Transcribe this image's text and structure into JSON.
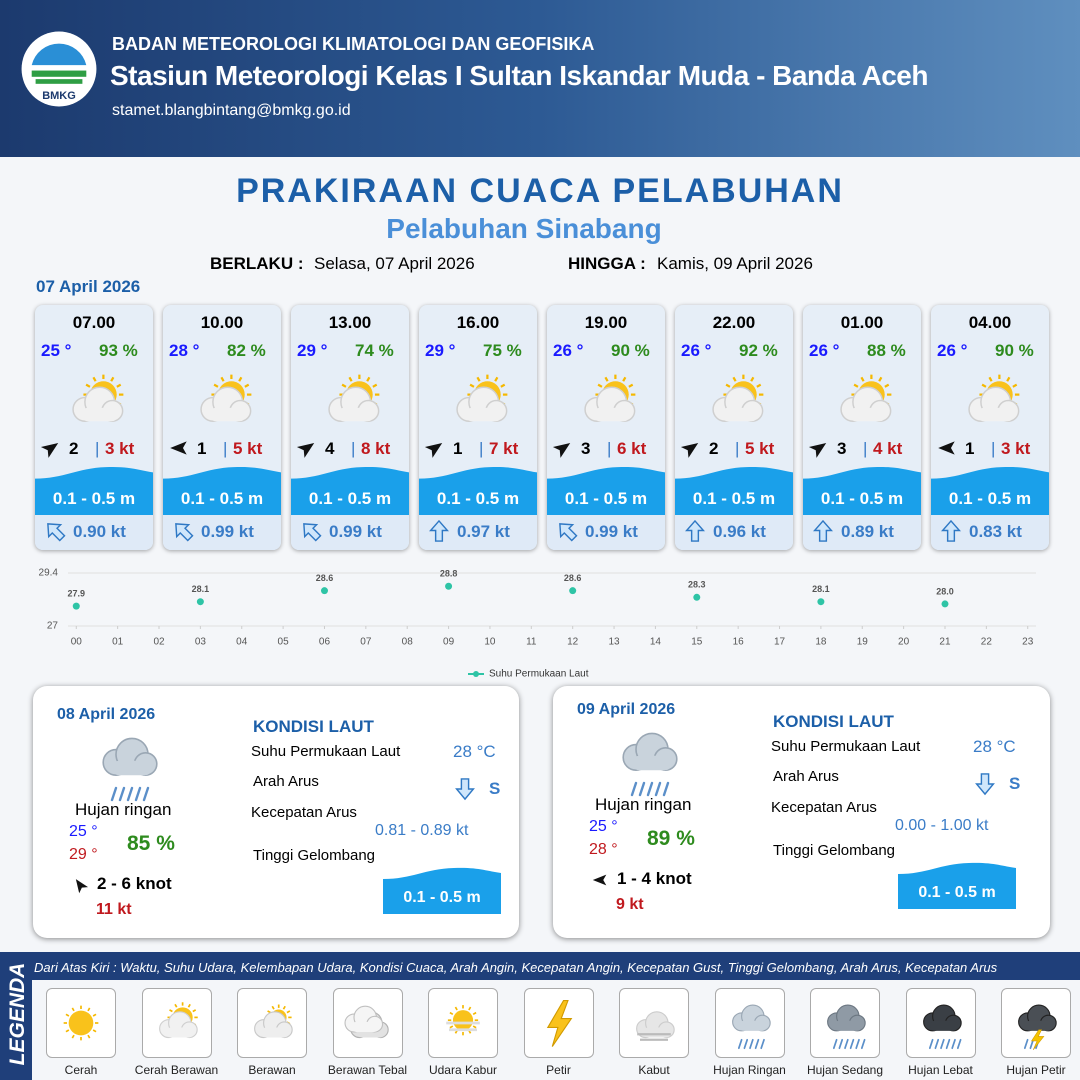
{
  "header": {
    "logo": "BMKG",
    "agency": "BADAN METEOROLOGI KLIMATOLOGI DAN GEOFISIKA",
    "station": "Stasiun Meteorologi Kelas I Sultan Iskandar Muda - Banda Aceh",
    "email": "stamet.blangbintang@bmkg.go.id"
  },
  "title": "PRAKIRAAN CUACA PELABUHAN",
  "subtitle": "Pelabuhan Sinabang",
  "validity": {
    "from_label": "BERLAKU :",
    "from": "Selasa, 07 April 2026",
    "to_label": "HINGGA :",
    "to": "Kamis, 09 April 2026"
  },
  "day1": {
    "date": "07 April 2026",
    "forecasts": [
      {
        "time": "07.00",
        "temperature": "25 °",
        "humidity": "93 %",
        "wind_speed": 2,
        "gust": "3 kt",
        "wave_height": "0.1 - 0.5 m",
        "current_speed": "0.90 kt"
      },
      {
        "time": "10.00",
        "temperature": "28 °",
        "humidity": "82 %",
        "wind_speed": 1,
        "gust": "5 kt",
        "wave_height": "0.1 - 0.5 m",
        "current_speed": "0.99 kt"
      },
      {
        "time": "13.00",
        "temperature": "29 °",
        "humidity": "74 %",
        "wind_speed": 4,
        "gust": "8 kt",
        "wave_height": "0.1 - 0.5 m",
        "current_speed": "0.99 kt"
      },
      {
        "time": "16.00",
        "temperature": "29 °",
        "humidity": "75 %",
        "wind_speed": 1,
        "gust": "7 kt",
        "wave_height": "0.1 - 0.5 m",
        "current_speed": "0.97 kt"
      },
      {
        "time": "19.00",
        "temperature": "26 °",
        "humidity": "90 %",
        "wind_speed": 3,
        "gust": "6 kt",
        "wave_height": "0.1 - 0.5 m",
        "current_speed": "0.99 kt"
      },
      {
        "time": "22.00",
        "temperature": "26 °",
        "humidity": "92 %",
        "wind_speed": 2,
        "gust": "5 kt",
        "wave_height": "0.1 - 0.5 m",
        "current_speed": "0.96 kt"
      },
      {
        "time": "01.00",
        "temperature": "26 °",
        "humidity": "88 %",
        "wind_speed": 3,
        "gust": "4 kt",
        "wave_height": "0.1 - 0.5 m",
        "current_speed": "0.89 kt"
      },
      {
        "time": "04.00",
        "temperature": "26 °",
        "humidity": "90 %",
        "wind_speed": 1,
        "gust": "3 kt",
        "wave_height": "0.1 - 0.5 m",
        "current_speed": "0.83 kt"
      }
    ]
  },
  "chart_data": {
    "type": "scatter",
    "x": [
      0,
      3,
      6,
      9,
      12,
      15,
      18,
      21
    ],
    "series": [
      {
        "name": "Suhu Permukaan Laut",
        "color": "#2ec4a6",
        "values": [
          27.9,
          28.1,
          28.6,
          28.8,
          28.6,
          28.3,
          28.1,
          28.0
        ],
        "value_labels": [
          "27.9",
          "28.1",
          "28.6",
          "28.8",
          "28.6",
          "28.3",
          "28.1",
          "28.0"
        ]
      }
    ],
    "xlim": [
      -0.2,
      23.2
    ],
    "xticks": [
      {
        "value": 0,
        "label": "00"
      },
      {
        "value": 1,
        "label": "01"
      },
      {
        "value": 2,
        "label": "02"
      },
      {
        "value": 3,
        "label": "03"
      },
      {
        "value": 4,
        "label": "04"
      },
      {
        "value": 5,
        "label": "05"
      },
      {
        "value": 6,
        "label": "06"
      },
      {
        "value": 7,
        "label": "07"
      },
      {
        "value": 8,
        "label": "08"
      },
      {
        "value": 9,
        "label": "09"
      },
      10,
      11,
      12,
      13,
      14,
      15,
      16,
      17,
      18,
      19,
      20,
      21,
      22,
      23
    ],
    "ylim": [
      27,
      29.4
    ],
    "yticks": [
      27,
      29.4
    ],
    "grid": true,
    "legend": "bottom"
  },
  "days": [
    {
      "date": "08 April 2026",
      "condition": "Hujan ringan",
      "temp_min": "25 °",
      "temp_max": "29 °",
      "humidity": "85 %",
      "wind": "2  - 6 knot",
      "gust": "11 kt",
      "sea": {
        "title": "KONDISI LAUT",
        "sst_label": "Suhu Permukaan Laut",
        "sst": "28 °C",
        "direction_label": "Arah Arus",
        "direction": "S",
        "speed_label": "Kecepatan Arus",
        "speed": "0.81  - 0.89 kt",
        "wave_label": "Tinggi Gelombang",
        "wave": "0.1 - 0.5 m"
      }
    },
    {
      "date": "09 April 2026",
      "condition": "Hujan ringan",
      "temp_min": "25 °",
      "temp_max": "28 °",
      "humidity": "89 %",
      "wind": "1  - 4 knot",
      "gust": "9 kt",
      "sea": {
        "title": "KONDISI LAUT",
        "sst_label": "Suhu Permukaan Laut",
        "sst": "28 °C",
        "direction_label": "Arah Arus",
        "direction": "S",
        "speed_label": "Kecepatan Arus",
        "speed": "0.00 - 1.00 kt",
        "wave_label": "Tinggi Gelombang",
        "wave": "0.1 - 0.5 m"
      }
    }
  ],
  "legend": {
    "title": "LEGENDA",
    "description": "Dari Atas Kiri : Waktu, Suhu Udara, Kelembapan Udara, Kondisi Cuaca, Arah Angin, Kecepatan Angin, Kecepatan Gust, Tinggi Gelombang, Arah Arus, Kecepatan Arus",
    "items": [
      "Cerah",
      "Cerah Berawan",
      "Berawan",
      "Berawan Tebal",
      "Udara Kabur",
      "Petir",
      "Kabut",
      "Hujan Ringan",
      "Hujan Sedang",
      "Hujan Lebat",
      "Hujan Petir"
    ]
  }
}
